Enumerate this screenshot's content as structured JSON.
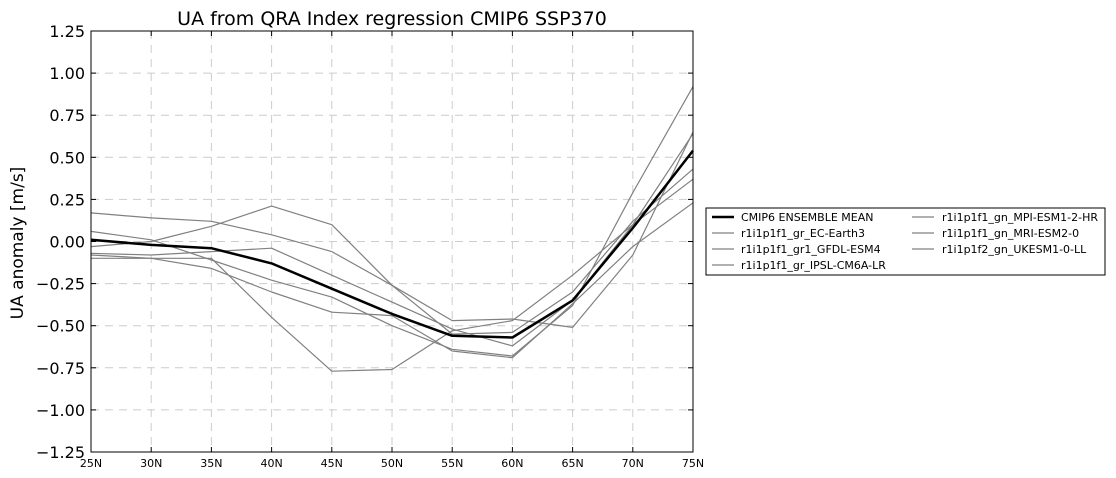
{
  "chart_data": {
    "type": "line",
    "title": "UA from QRA Index regression CMIP6 SSP370",
    "xlabel": "",
    "ylabel": "UA anomaly [m/s]",
    "categories": [
      "25N",
      "30N",
      "35N",
      "40N",
      "45N",
      "50N",
      "55N",
      "60N",
      "65N",
      "70N",
      "75N"
    ],
    "ylim": [
      -1.25,
      1.25
    ],
    "yticks": [
      "1.25",
      "1.00",
      "0.75",
      "0.50",
      "0.25",
      "0.00",
      "−0.25",
      "−0.50",
      "−0.75",
      "−1.00",
      "−1.25"
    ],
    "ytick_values": [
      1.25,
      1.0,
      0.75,
      0.5,
      0.25,
      0.0,
      -0.25,
      -0.5,
      -0.75,
      -1.0,
      -1.25
    ],
    "grid": true,
    "legend_position": "outside-right",
    "series": [
      {
        "name": "CMIP6 ENSEMBLE MEAN",
        "color": "#000000",
        "emphasis": true,
        "values": [
          0.01,
          -0.02,
          -0.04,
          -0.13,
          -0.28,
          -0.43,
          -0.56,
          -0.57,
          -0.35,
          0.08,
          0.54
        ]
      },
      {
        "name": "r1i1p1f1_gr_EC-Earth3",
        "color": "#808080",
        "values": [
          0.17,
          0.14,
          0.12,
          0.04,
          -0.06,
          -0.26,
          -0.55,
          -0.54,
          -0.3,
          0.12,
          0.43
        ]
      },
      {
        "name": "r1i1p1f1_gr1_GFDL-ESM4",
        "color": "#808080",
        "values": [
          -0.1,
          -0.1,
          -0.1,
          -0.45,
          -0.77,
          -0.76,
          -0.53,
          -0.47,
          -0.2,
          0.1,
          0.37
        ]
      },
      {
        "name": "r1i1p1f1_gr_IPSL-CM6A-LR",
        "color": "#808080",
        "values": [
          0.06,
          0.01,
          -0.11,
          -0.23,
          -0.33,
          -0.5,
          -0.64,
          -0.68,
          -0.38,
          0.29,
          0.92
        ]
      },
      {
        "name": "r1i1p1f1_gn_MPI-ESM1-2-HR",
        "color": "#808080",
        "values": [
          -0.03,
          0.0,
          0.09,
          0.21,
          0.1,
          -0.26,
          -0.47,
          -0.46,
          -0.51,
          -0.08,
          0.65
        ]
      },
      {
        "name": "r1i1p1f1_gn_MRI-ESM2-0",
        "color": "#808080",
        "values": [
          -0.07,
          -0.08,
          -0.06,
          -0.04,
          -0.2,
          -0.36,
          -0.52,
          -0.62,
          -0.35,
          0.1,
          0.64
        ]
      },
      {
        "name": "r1i1p1f2_gn_UKESM1-0-LL",
        "color": "#808080",
        "values": [
          -0.08,
          -0.1,
          -0.16,
          -0.3,
          -0.42,
          -0.44,
          -0.65,
          -0.69,
          -0.37,
          -0.03,
          0.23
        ]
      }
    ]
  }
}
